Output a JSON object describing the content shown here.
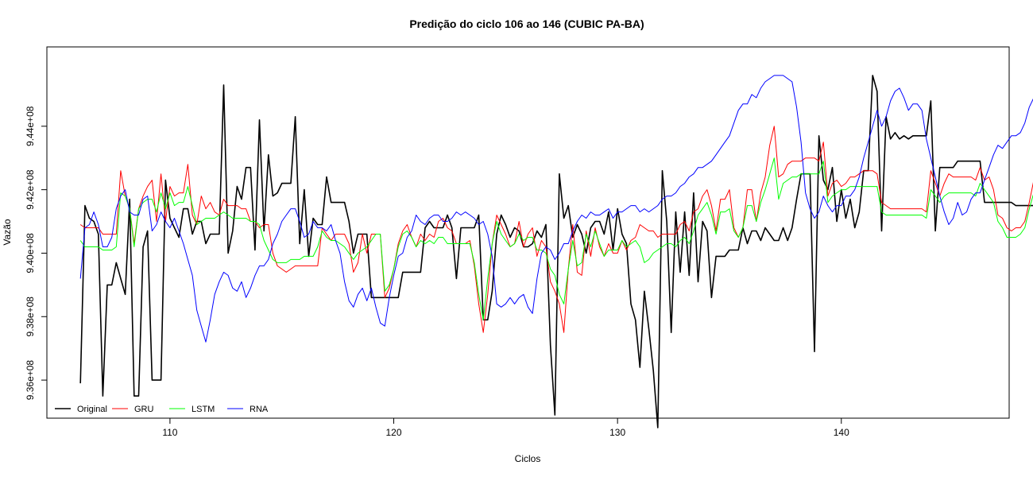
{
  "chart_data": {
    "type": "line",
    "title": "Predição do ciclo 106 ao 146 (CUBIC PA-BA)",
    "xlabel": "Ciclos",
    "ylabel": "Vazão",
    "xlim": [
      104.5,
      147.5
    ],
    "ylim": [
      934800000,
      946500000
    ],
    "xticks": [
      110,
      120,
      130,
      140
    ],
    "xtick_labels": [
      "110",
      "120",
      "130",
      "140"
    ],
    "yticks": [
      936000000,
      938000000,
      940000000,
      942000000,
      944000000
    ],
    "ytick_labels": [
      "9.36e+08",
      "9.38e+08",
      "9.40e+08",
      "9.42e+08",
      "9.44e+08"
    ],
    "legend_position": "bottom-left",
    "grid": false,
    "x_start": 106,
    "x_step": 0.2,
    "series": [
      {
        "name": "Original",
        "color": "#000000",
        "values": [
          935900000,
          941500000,
          941100000,
          941000000,
          940600000,
          935500000,
          939000000,
          939000000,
          939700000,
          939200000,
          938700000,
          941700000,
          935500000,
          935500000,
          940200000,
          940700000,
          936000000,
          936000000,
          936000000,
          942300000,
          941100000,
          940800000,
          940500000,
          941400000,
          941400000,
          940600000,
          941000000,
          941000000,
          940300000,
          940600000,
          940600000,
          940600000,
          945300000,
          940000000,
          940700000,
          942100000,
          941700000,
          942700000,
          942700000,
          940100000,
          944200000,
          940700000,
          943100000,
          941800000,
          941900000,
          942200000,
          942200000,
          942200000,
          944300000,
          940300000,
          942000000,
          939900000,
          941100000,
          940900000,
          940900000,
          942400000,
          941600000,
          941600000,
          941600000,
          941600000,
          941000000,
          940000000,
          940600000,
          940600000,
          940600000,
          938600000,
          938600000,
          938600000,
          938600000,
          938600000,
          938600000,
          938600000,
          939400000,
          939400000,
          939400000,
          939400000,
          939400000,
          940800000,
          941000000,
          940800000,
          940800000,
          940800000,
          941200000,
          940800000,
          939200000,
          940800000,
          940800000,
          940800000,
          940800000,
          941200000,
          937900000,
          937900000,
          938800000,
          940600000,
          941200000,
          940900000,
          940500000,
          940800000,
          940700000,
          940200000,
          940200000,
          940300000,
          940700000,
          940500000,
          940900000,
          937100000,
          934900000,
          942500000,
          941100000,
          941500000,
          940500000,
          940900000,
          940600000,
          940000000,
          940800000,
          941000000,
          941000000,
          940600000,
          941300000,
          940100000,
          941400000,
          940600000,
          940300000,
          938400000,
          937900000,
          936400000,
          938800000,
          937600000,
          936300000,
          934500000,
          942600000,
          941000000,
          937500000,
          941300000,
          939400000,
          941300000,
          939300000,
          941900000,
          939100000,
          941000000,
          940700000,
          938600000,
          939900000,
          939900000,
          939900000,
          940100000,
          940100000,
          940100000,
          940800000,
          940300000,
          940700000,
          940700000,
          940400000,
          940800000,
          940600000,
          940400000,
          940400000,
          940800000,
          940400000,
          940800000,
          941700000,
          942500000,
          942500000,
          942500000,
          936900000,
          943700000,
          942300000,
          942000000,
          942700000,
          941000000,
          942000000,
          941100000,
          941700000,
          940800000,
          941300000,
          942600000,
          942600000,
          945600000,
          945100000,
          940700000,
          944300000,
          943600000,
          943800000,
          943600000,
          943700000,
          943600000,
          943700000,
          943700000,
          943700000,
          943700000,
          944800000,
          940700000,
          942700000,
          942700000,
          942700000,
          942700000,
          942900000,
          942900000,
          942900000,
          942900000,
          942900000,
          942900000,
          941600000,
          941600000,
          941600000,
          941600000,
          941600000,
          941600000,
          941600000,
          941500000,
          941500000,
          941500000,
          941500000,
          941500000,
          941500000,
          941500000,
          941500000,
          944300000,
          941600000,
          942900000,
          942900000
        ]
      },
      {
        "name": "GRU",
        "color": "#ff0000",
        "values": [
          940900000,
          940800000,
          940800000,
          940800000,
          940800000,
          940600000,
          940600000,
          940600000,
          940600000,
          942600000,
          941800000,
          941400000,
          940300000,
          941400000,
          941800000,
          942100000,
          942300000,
          941000000,
          942500000,
          941000000,
          942100000,
          941800000,
          941900000,
          941900000,
          942800000,
          941200000,
          940900000,
          941800000,
          941400000,
          941600000,
          941300000,
          941200000,
          941700000,
          941500000,
          941500000,
          941500000,
          941400000,
          941400000,
          941000000,
          941000000,
          940800000,
          940900000,
          940900000,
          940000000,
          939600000,
          939500000,
          939400000,
          939500000,
          939600000,
          939600000,
          939600000,
          939600000,
          939600000,
          939600000,
          940800000,
          940600000,
          940400000,
          940600000,
          940600000,
          940600000,
          940300000,
          939400000,
          939700000,
          940600000,
          940000000,
          940600000,
          940600000,
          940600000,
          938600000,
          938900000,
          939500000,
          940300000,
          940700000,
          940900000,
          940500000,
          940200000,
          940600000,
          940400000,
          940600000,
          940500000,
          941000000,
          941100000,
          940800000,
          940700000,
          940300000,
          940300000,
          940300000,
          940400000,
          939600000,
          938400000,
          937500000,
          938700000,
          940300000,
          941200000,
          940900000,
          940600000,
          940200000,
          940300000,
          941000000,
          940200000,
          940600000,
          940800000,
          939900000,
          940400000,
          940200000,
          939100000,
          938800000,
          938400000,
          937500000,
          939500000,
          940900000,
          939400000,
          939300000,
          940700000,
          939900000,
          940800000,
          940200000,
          939900000,
          940300000,
          940000000,
          940000000,
          940400000,
          940100000,
          940400000,
          940500000,
          940900000,
          940800000,
          940700000,
          940700000,
          940500000,
          940600000,
          940600000,
          940600000,
          940600000,
          940900000,
          941000000,
          940700000,
          941300000,
          941400000,
          941800000,
          942000000,
          941500000,
          940700000,
          941700000,
          941700000,
          942000000,
          940800000,
          940500000,
          940800000,
          942000000,
          942000000,
          941000000,
          941900000,
          942400000,
          943400000,
          944000000,
          942400000,
          942500000,
          942800000,
          942900000,
          942900000,
          942900000,
          943000000,
          943000000,
          943000000,
          942900000,
          943500000,
          941800000,
          942200000,
          942300000,
          942100000,
          942200000,
          942400000,
          942400000,
          942500000,
          942600000,
          942600000,
          942600000,
          942500000,
          941600000,
          941500000,
          941400000,
          941400000,
          941400000,
          941400000,
          941400000,
          941400000,
          941400000,
          941400000,
          941300000,
          942600000,
          942200000,
          941800000,
          942200000,
          942500000,
          942400000,
          942400000,
          942400000,
          942400000,
          942400000,
          942300000,
          942700000,
          942300000,
          942400000,
          942000000,
          941200000,
          941100000,
          940800000,
          940700000,
          940800000,
          940800000,
          941000000,
          941600000,
          942300000,
          942600000,
          942800000,
          943100000,
          943500000,
          942900000,
          942000000
        ]
      },
      {
        "name": "LSTM",
        "color": "#00ff00",
        "values": [
          940400000,
          940200000,
          940200000,
          940200000,
          940200000,
          940100000,
          940100000,
          940100000,
          940200000,
          941900000,
          941800000,
          941400000,
          940200000,
          941400000,
          941600000,
          941700000,
          941700000,
          941300000,
          941900000,
          941400000,
          941900000,
          941500000,
          941600000,
          941600000,
          942100000,
          941500000,
          940900000,
          941000000,
          941100000,
          941100000,
          941100000,
          941200000,
          941300000,
          941200000,
          941100000,
          941100000,
          941100000,
          941100000,
          941000000,
          941000000,
          940900000,
          940400000,
          940100000,
          939800000,
          939700000,
          939700000,
          939700000,
          939800000,
          939800000,
          939800000,
          939900000,
          939900000,
          939900000,
          940200000,
          940700000,
          940500000,
          940400000,
          940400000,
          940300000,
          940200000,
          940000000,
          939800000,
          940000000,
          940100000,
          940200000,
          940400000,
          940600000,
          940600000,
          938800000,
          939000000,
          939500000,
          940200000,
          940600000,
          940700000,
          940500000,
          940200000,
          940400000,
          940300000,
          940400000,
          940300000,
          940500000,
          940500000,
          940300000,
          940300000,
          940300000,
          940300000,
          940300000,
          940300000,
          939700000,
          938700000,
          937900000,
          939200000,
          940300000,
          941000000,
          940600000,
          940400000,
          940200000,
          940300000,
          940600000,
          940400000,
          940500000,
          940500000,
          940100000,
          940100000,
          940000000,
          939500000,
          939300000,
          938700000,
          938400000,
          939500000,
          940400000,
          939600000,
          939700000,
          940600000,
          940200000,
          940700000,
          940300000,
          939900000,
          940100000,
          940100000,
          940100000,
          940400000,
          940200000,
          940300000,
          940400000,
          940200000,
          939700000,
          939800000,
          940000000,
          940100000,
          940200000,
          940300000,
          940300000,
          940200000,
          940400000,
          940500000,
          940300000,
          940700000,
          941200000,
          941400000,
          941600000,
          941200000,
          940600000,
          941300000,
          941300000,
          941400000,
          940700000,
          940500000,
          940800000,
          941500000,
          941500000,
          941000000,
          941600000,
          942000000,
          942500000,
          943000000,
          941700000,
          942200000,
          942300000,
          942400000,
          942400000,
          942500000,
          942500000,
          942500000,
          942500000,
          942500000,
          942900000,
          941600000,
          941800000,
          941900000,
          942000000,
          942000000,
          942100000,
          942100000,
          942100000,
          942100000,
          942100000,
          942100000,
          942100000,
          941300000,
          941200000,
          941200000,
          941200000,
          941200000,
          941200000,
          941200000,
          941200000,
          941200000,
          941200000,
          941100000,
          942000000,
          941800000,
          941600000,
          941800000,
          941900000,
          941900000,
          941900000,
          941900000,
          941900000,
          941900000,
          941800000,
          942200000,
          942000000,
          941800000,
          941600000,
          941000000,
          940800000,
          940500000,
          940500000,
          940500000,
          940600000,
          940800000,
          941400000,
          941900000,
          942200000,
          942400000,
          942700000,
          942900000,
          942600000,
          941500000
        ]
      },
      {
        "name": "RNA",
        "color": "#0000ff",
        "values": [
          939200000,
          940800000,
          940900000,
          941300000,
          940900000,
          940200000,
          940200000,
          940500000,
          941400000,
          941800000,
          942000000,
          941300000,
          941200000,
          941200000,
          941700000,
          941800000,
          940700000,
          940900000,
          941300000,
          941000000,
          940800000,
          941100000,
          940700000,
          940300000,
          939800000,
          939300000,
          938200000,
          937700000,
          937200000,
          937900000,
          938700000,
          939100000,
          939400000,
          939300000,
          938900000,
          938800000,
          939100000,
          938600000,
          938900000,
          939300000,
          939600000,
          939600000,
          939800000,
          940300000,
          940600000,
          941000000,
          941200000,
          941400000,
          941400000,
          941000000,
          940500000,
          940600000,
          941000000,
          940800000,
          940800000,
          940700000,
          940900000,
          940400000,
          940000000,
          939100000,
          938500000,
          938300000,
          938700000,
          938900000,
          938500000,
          938900000,
          938300000,
          937800000,
          937700000,
          938600000,
          939300000,
          939900000,
          940000000,
          940500000,
          940700000,
          941200000,
          941000000,
          940900000,
          941100000,
          941200000,
          941200000,
          941000000,
          941000000,
          941100000,
          941300000,
          941200000,
          941300000,
          941200000,
          941100000,
          940900000,
          941000000,
          940600000,
          939900000,
          938400000,
          938300000,
          938400000,
          938600000,
          938400000,
          938600000,
          938700000,
          938300000,
          938100000,
          939200000,
          940000000,
          940200000,
          940100000,
          939800000,
          940000000,
          940300000,
          940300000,
          940700000,
          941000000,
          941200000,
          941100000,
          941300000,
          941200000,
          941200000,
          941300000,
          941400000,
          941100000,
          941300000,
          941300000,
          941400000,
          941500000,
          941500000,
          941300000,
          941400000,
          941300000,
          941400000,
          941500000,
          941700000,
          941800000,
          941800000,
          941900000,
          942100000,
          942200000,
          942400000,
          942500000,
          942700000,
          942700000,
          942800000,
          942900000,
          943100000,
          943300000,
          943500000,
          943700000,
          944100000,
          944500000,
          944700000,
          944700000,
          945000000,
          944900000,
          945200000,
          945400000,
          945500000,
          945600000,
          945600000,
          945600000,
          945500000,
          945400000,
          944600000,
          943500000,
          941900000,
          941400000,
          941100000,
          941300000,
          941800000,
          941500000,
          941300000,
          941500000,
          941500000,
          941800000,
          941800000,
          942000000,
          942400000,
          943000000,
          943500000,
          944000000,
          944500000,
          944000000,
          944300000,
          944800000,
          945100000,
          945200000,
          944900000,
          944500000,
          944700000,
          944700000,
          944500000,
          943600000,
          943000000,
          942400000,
          941800000,
          941300000,
          940900000,
          941100000,
          941600000,
          941200000,
          941300000,
          941700000,
          941900000,
          941900000,
          942300000,
          942700000,
          943100000,
          943400000,
          943300000,
          943500000,
          943700000,
          943700000,
          943800000,
          944100000,
          944600000,
          944900000,
          944600000,
          945100000,
          945600000,
          945300000
        ]
      }
    ]
  }
}
